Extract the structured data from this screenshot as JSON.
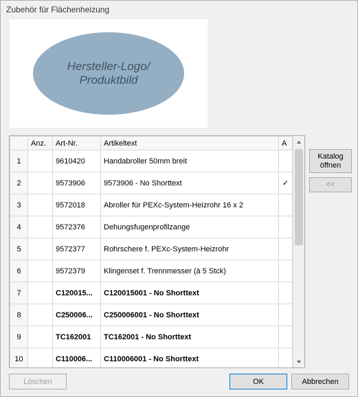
{
  "window": {
    "title": "Zubehör für Flächenheizung"
  },
  "placeholder": {
    "line1": "Hersteller-Logo/",
    "line2": "Produktbild",
    "ellipse_color": "#94aec4",
    "text_color": "#3c5363"
  },
  "table": {
    "headers": {
      "anz": "Anz.",
      "artnr": "Art-Nr.",
      "text": "Artikeltext",
      "a": "A"
    },
    "rows": [
      {
        "n": "1",
        "anz": "",
        "art": "9610420",
        "txt": "Handabroller  50mm breit",
        "a": "",
        "bold": false
      },
      {
        "n": "2",
        "anz": "",
        "art": "9573906",
        "txt": "9573906 - No Shorttext",
        "a": "✓",
        "bold": false
      },
      {
        "n": "3",
        "anz": "",
        "art": "9572018",
        "txt": "Abroller für PEXc-System-Heizrohr 16 x 2",
        "a": "",
        "bold": false
      },
      {
        "n": "4",
        "anz": "",
        "art": "9572376",
        "txt": "Dehungsfugenprofilzange",
        "a": "",
        "bold": false
      },
      {
        "n": "5",
        "anz": "",
        "art": "9572377",
        "txt": "Rohrschere f. PEXc-System-Heizrohr",
        "a": "",
        "bold": false
      },
      {
        "n": "6",
        "anz": "",
        "art": "9572379",
        "txt": "Klingenset f. Trennmesser (à 5 Stck)",
        "a": "",
        "bold": false
      },
      {
        "n": "7",
        "anz": "",
        "art": "C120015...",
        "txt": "C120015001 - No Shorttext",
        "a": "",
        "bold": true
      },
      {
        "n": "8",
        "anz": "",
        "art": "C250006...",
        "txt": "C250006001 - No Shorttext",
        "a": "",
        "bold": true
      },
      {
        "n": "9",
        "anz": "",
        "art": "TC162001",
        "txt": "TC162001 - No Shorttext",
        "a": "",
        "bold": true
      },
      {
        "n": "10",
        "anz": "",
        "art": "C110006...",
        "txt": "C110006001 - No Shorttext",
        "a": "",
        "bold": true
      }
    ]
  },
  "side": {
    "catalog_line1": "Katalog",
    "catalog_line2": "öffnen",
    "back": "<<"
  },
  "buttons": {
    "delete": "Löschen",
    "ok": "OK",
    "cancel": "Abbrechen"
  }
}
